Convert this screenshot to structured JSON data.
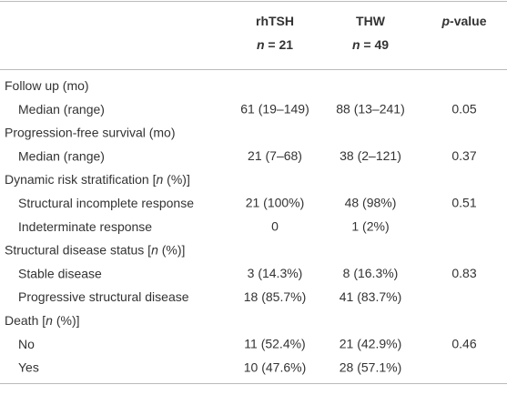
{
  "table": {
    "header": [
      [
        [
          "rhTSH"
        ],
        [
          {
            "italic": "n"
          },
          " = 21"
        ]
      ],
      [
        [
          "THW"
        ],
        [
          {
            "italic": "n"
          },
          " = 49"
        ]
      ],
      [
        [
          {
            "italic": "p"
          },
          "-value"
        ]
      ]
    ],
    "rows": [
      {
        "label": [
          "Follow up (mo)"
        ],
        "indent": false,
        "cells": []
      },
      {
        "label": [
          "Median (range)"
        ],
        "indent": true,
        "cells": [
          "61 (19–149)",
          "88 (13–241)",
          "0.05"
        ]
      },
      {
        "label": [
          "Progression-free survival (mo)"
        ],
        "indent": false,
        "cells": []
      },
      {
        "label": [
          "Median (range)"
        ],
        "indent": true,
        "cells": [
          "21 (7–68)",
          "38 (2–121)",
          "0.37"
        ]
      },
      {
        "label": [
          "Dynamic risk stratification [",
          {
            "italic": "n"
          },
          " (%)]"
        ],
        "indent": false,
        "cells": []
      },
      {
        "label": [
          "Structural incomplete response"
        ],
        "indent": true,
        "cells": [
          "21 (100%)",
          "48 (98%)",
          "0.51"
        ]
      },
      {
        "label": [
          "Indeterminate response"
        ],
        "indent": true,
        "cells": [
          "0",
          "1 (2%)"
        ]
      },
      {
        "label": [
          "Structural disease status [",
          {
            "italic": "n"
          },
          " (%)]"
        ],
        "indent": false,
        "cells": []
      },
      {
        "label": [
          "Stable disease"
        ],
        "indent": true,
        "cells": [
          "3 (14.3%)",
          "8 (16.3%)",
          "0.83"
        ]
      },
      {
        "label": [
          "Progressive structural disease"
        ],
        "indent": true,
        "cells": [
          "18 (85.7%)",
          "41 (83.7%)"
        ]
      },
      {
        "label": [
          "Death [",
          {
            "italic": "n"
          },
          " (%)]"
        ],
        "indent": false,
        "cells": []
      },
      {
        "label": [
          "No"
        ],
        "indent": true,
        "cells": [
          "11 (52.4%)",
          "21 (42.9%)",
          "0.46"
        ]
      },
      {
        "label": [
          "Yes"
        ],
        "indent": true,
        "cells": [
          "10 (47.6%)",
          "28 (57.1%)"
        ]
      }
    ]
  }
}
